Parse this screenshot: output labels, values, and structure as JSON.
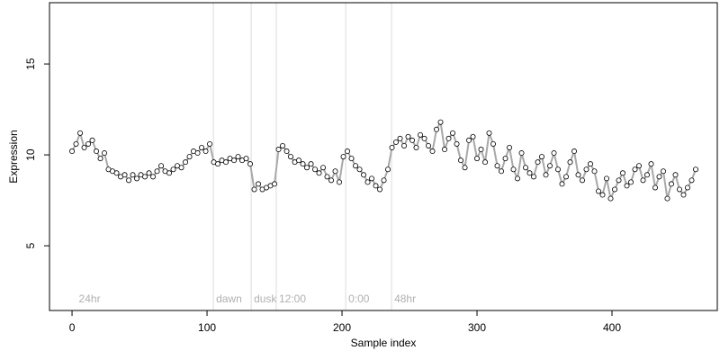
{
  "chart_data": {
    "type": "line",
    "x_label": "Sample index",
    "y_label": "Expression",
    "xlim": [
      -16.7,
      478
    ],
    "ylim": [
      1.44,
      18.37
    ],
    "xticks": [
      0,
      100,
      200,
      300,
      400
    ],
    "yticks": [
      5,
      10,
      15
    ],
    "line_color": "#a8a8a8",
    "point_fill": "#ffffff",
    "point_stroke": "#000000",
    "annotations": [
      {
        "x": 3,
        "label": "24hr",
        "line": false
      },
      {
        "x": 104.7,
        "label": "dawn",
        "line": true
      },
      {
        "x": 132.7,
        "label": "dusk",
        "line": true
      },
      {
        "x": 151.3,
        "label": "12:00",
        "line": true
      },
      {
        "x": 202.7,
        "label": "0:00",
        "line": true
      },
      {
        "x": 236.7,
        "label": "48hr",
        "line": true
      }
    ],
    "x": [
      0,
      3,
      6,
      9,
      12,
      15,
      18,
      21,
      24,
      27,
      30,
      33,
      36,
      39,
      42,
      45,
      48,
      51,
      54,
      57,
      60,
      63,
      66,
      69,
      72,
      75,
      78,
      81,
      84,
      87,
      90,
      93,
      96,
      99,
      102,
      105,
      108,
      111,
      114,
      117,
      120,
      123,
      126,
      129,
      132,
      135,
      138,
      141,
      144,
      147,
      150,
      153,
      156,
      159,
      162,
      165,
      168,
      171,
      174,
      177,
      180,
      183,
      186,
      189,
      192,
      195,
      198,
      201,
      204,
      207,
      210,
      213,
      216,
      219,
      222,
      225,
      228,
      231,
      234,
      237,
      240,
      243,
      246,
      249,
      252,
      255,
      258,
      261,
      264,
      267,
      270,
      273,
      276,
      279,
      282,
      285,
      288,
      291,
      294,
      297,
      300,
      303,
      306,
      309,
      312,
      315,
      318,
      321,
      324,
      327,
      330,
      333,
      336,
      339,
      342,
      345,
      348,
      351,
      354,
      357,
      360,
      363,
      366,
      369,
      372,
      375,
      378,
      381,
      384,
      387,
      390,
      393,
      396,
      399,
      402,
      405,
      408,
      411,
      414,
      417,
      420,
      423,
      426,
      429,
      432,
      435,
      438,
      441,
      444,
      447,
      450,
      453,
      456,
      459,
      462
    ],
    "values": [
      10.2,
      10.6,
      11.2,
      10.4,
      10.6,
      10.8,
      10.2,
      9.8,
      10.1,
      9.2,
      9.1,
      9.0,
      8.8,
      8.9,
      8.6,
      8.9,
      8.7,
      8.9,
      8.8,
      9.0,
      8.8,
      9.1,
      9.4,
      9.1,
      9.0,
      9.2,
      9.4,
      9.3,
      9.6,
      9.9,
      10.2,
      10.1,
      10.4,
      10.2,
      10.6,
      9.6,
      9.5,
      9.7,
      9.6,
      9.8,
      9.7,
      9.9,
      9.7,
      9.8,
      9.5,
      8.1,
      8.4,
      8.1,
      8.2,
      8.3,
      8.4,
      10.3,
      10.5,
      10.2,
      9.9,
      9.6,
      9.7,
      9.5,
      9.3,
      9.5,
      9.2,
      9.0,
      9.3,
      8.8,
      8.6,
      9.1,
      8.5,
      9.9,
      10.2,
      9.8,
      9.4,
      9.2,
      8.9,
      8.5,
      8.7,
      8.3,
      8.1,
      8.6,
      9.2,
      10.4,
      10.7,
      10.9,
      10.5,
      11.0,
      10.8,
      10.4,
      11.1,
      10.9,
      10.5,
      10.2,
      11.4,
      11.8,
      10.3,
      10.9,
      11.2,
      10.6,
      9.7,
      9.3,
      10.8,
      11.0,
      9.8,
      10.3,
      9.6,
      11.2,
      10.6,
      9.4,
      9.1,
      9.8,
      10.4,
      9.2,
      8.7,
      10.1,
      9.3,
      9.0,
      8.8,
      9.6,
      9.9,
      8.9,
      9.4,
      10.1,
      9.2,
      8.4,
      8.8,
      9.6,
      10.2,
      8.9,
      8.6,
      9.2,
      9.5,
      9.1,
      8.0,
      7.8,
      8.7,
      7.6,
      8.1,
      8.6,
      9.0,
      8.3,
      8.5,
      9.2,
      9.4,
      8.6,
      8.9,
      9.5,
      8.2,
      8.8,
      9.1,
      7.6,
      8.4,
      8.9,
      8.1,
      7.8,
      8.2,
      8.6,
      9.2
    ]
  }
}
